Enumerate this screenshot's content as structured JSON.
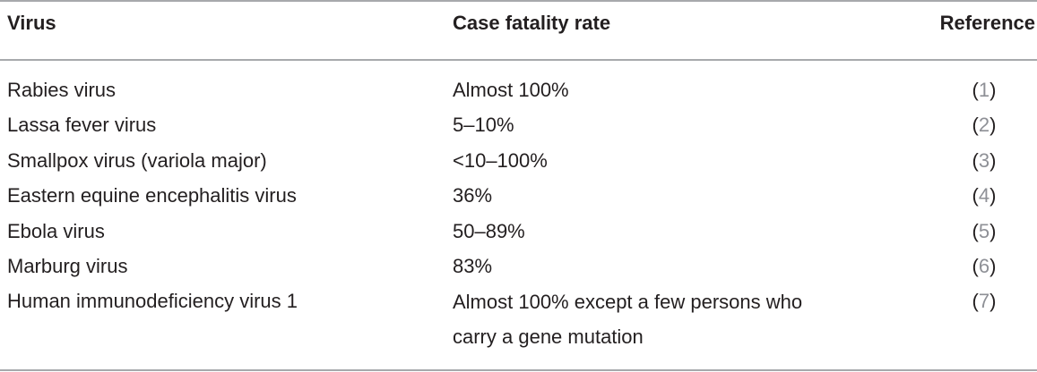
{
  "table": {
    "headers": {
      "virus": "Virus",
      "case_fatality_rate": "Case fatality rate",
      "reference": "Reference"
    },
    "rows": [
      {
        "virus": "Rabies virus",
        "case_fatality_rate": "Almost 100%",
        "reference": "1"
      },
      {
        "virus": "Lassa fever virus",
        "case_fatality_rate": "5–10%",
        "reference": "2"
      },
      {
        "virus": "Smallpox virus (variola major)",
        "case_fatality_rate": "<10–100%",
        "reference": "3"
      },
      {
        "virus": "Eastern equine encephalitis virus",
        "case_fatality_rate": "36%",
        "reference": "4"
      },
      {
        "virus": "Ebola virus",
        "case_fatality_rate": "50–89%",
        "reference": "5"
      },
      {
        "virus": "Marburg virus",
        "case_fatality_rate": "83%",
        "reference": "6"
      },
      {
        "virus": "Human immunodeficiency virus 1",
        "case_fatality_rate": "Almost 100% except a few persons who carry a gene mutation",
        "reference": "7"
      }
    ],
    "colors": {
      "text": "#231f20",
      "rule": "#a7a9ac",
      "reference_number": "#8e9096"
    }
  }
}
